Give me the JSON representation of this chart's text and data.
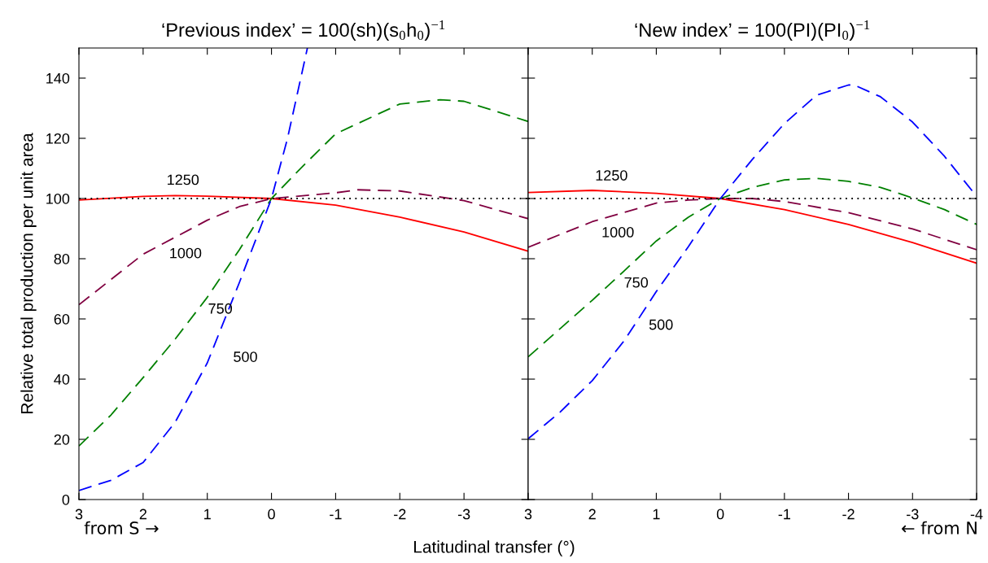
{
  "chart_data": [
    {
      "type": "line",
      "title": "‘Previous index’ = 100(sh)(s$_{0}$h$_{0}$)$^{−1}$",
      "ylabel": "Relative total production per unit area",
      "xlabel": "Latitudinal transfer (°)",
      "xlim": [
        3,
        -4
      ],
      "xticks": [
        3,
        2,
        1,
        0,
        -1,
        -2,
        -3,
        {
          "value": -4,
          "label": null
        }
      ],
      "ylim": [
        0,
        150
      ],
      "yticks": [
        0,
        20,
        40,
        60,
        80,
        100,
        120,
        140
      ],
      "grid": false,
      "legend": false,
      "marker": "none",
      "series": [
        {
          "name": "1250",
          "color": "#ff0000",
          "line_style": "solid",
          "x": [
            3,
            2,
            1.5,
            1,
            0,
            -1,
            -2,
            -3,
            -4
          ],
          "values": [
            99.5,
            100.7,
            101.0,
            100.8,
            100,
            97.8,
            93.8,
            88.9,
            82.5
          ]
        },
        {
          "name": "1000",
          "color": "#800040",
          "line_style": "dashed",
          "x": [
            3,
            2.5,
            2,
            1,
            0.5,
            0,
            -1,
            -1.34,
            -2,
            -3,
            -4
          ],
          "values": [
            64.7,
            73.1,
            81.5,
            92.8,
            97.3,
            100,
            101.9,
            102.9,
            102.5,
            99.3,
            93.3
          ]
        },
        {
          "name": "750",
          "color": "#008000",
          "line_style": "dashed",
          "x": [
            3,
            2.5,
            2,
            1.5,
            1,
            0.5,
            0,
            -0.5,
            -1,
            -2,
            -2.63,
            -3,
            -4
          ],
          "values": [
            17.8,
            28.1,
            40.5,
            53.3,
            67.2,
            83,
            100,
            111,
            121.5,
            131.4,
            132.8,
            132.3,
            125.6
          ]
        },
        {
          "name": "500",
          "color": "#0000ff",
          "line_style": "dashed",
          "x": [
            3,
            2.5,
            2,
            1.5,
            1,
            0.5,
            0,
            -0.25,
            -0.56
          ],
          "values": [
            3.0,
            6.4,
            12.3,
            25.7,
            45.4,
            72.1,
            100,
            120,
            150
          ]
        }
      ],
      "ref_lines": [
        {
          "axis": "y",
          "value": 100,
          "label": null,
          "color": "#000000",
          "line_style": "dotted"
        }
      ],
      "annotations": [
        "from S →"
      ]
    },
    {
      "type": "line",
      "title": "‘New index’ = 100(PI)(PI$_{0}$)$^{−1}$",
      "tick_labels": "x",
      "xlim": [
        3,
        -4
      ],
      "xticks": [
        3,
        2,
        1,
        0,
        -1,
        -2,
        -3,
        -4
      ],
      "ylim": [
        0,
        150
      ],
      "yticks": [
        0,
        20,
        40,
        60,
        80,
        100,
        120,
        140
      ],
      "grid": false,
      "legend": false,
      "marker": "none",
      "series": [
        {
          "name": "1250",
          "color": "#ff0000",
          "line_style": "solid",
          "x": [
            3,
            2,
            1,
            0,
            -1,
            -2,
            -3,
            -4
          ],
          "values": [
            102,
            102.7,
            101.7,
            100,
            96.3,
            91.4,
            85.4,
            78.5
          ]
        },
        {
          "name": "1000",
          "color": "#800040",
          "line_style": "dashed",
          "x": [
            3,
            2,
            1,
            0.5,
            0,
            -0.5,
            -1,
            -2,
            -3,
            -4
          ],
          "values": [
            83.8,
            92.3,
            98.5,
            99.5,
            100,
            100,
            99,
            95.3,
            89.9,
            83
          ]
        },
        {
          "name": "750",
          "color": "#008000",
          "line_style": "dashed",
          "x": [
            3,
            2.5,
            2,
            1.5,
            1,
            0.5,
            0,
            -0.5,
            -1,
            -1.5,
            -2,
            -2.5,
            -3,
            -3.5,
            -4
          ],
          "values": [
            47.4,
            56.8,
            66.2,
            76,
            85.9,
            93.8,
            100,
            103.7,
            106.2,
            106.7,
            105.7,
            103.7,
            100.2,
            96.3,
            91.4
          ]
        },
        {
          "name": "500",
          "color": "#0000ff",
          "line_style": "dashed",
          "x": [
            3,
            2.5,
            2,
            1.5,
            1,
            0.5,
            0,
            -0.5,
            -1,
            -1.5,
            -2,
            -2.08,
            -2.5,
            -3,
            -3.5,
            -4
          ],
          "values": [
            20.2,
            29.1,
            39.5,
            52.8,
            69.1,
            84,
            100,
            113,
            124.9,
            134.3,
            137.7,
            137.8,
            133.8,
            125.4,
            114,
            100.7
          ]
        }
      ],
      "ref_lines": [
        {
          "axis": "y",
          "value": 100,
          "label": null,
          "color": "#000000",
          "line_style": "dotted"
        }
      ],
      "annotations": [
        "← from N"
      ]
    }
  ]
}
